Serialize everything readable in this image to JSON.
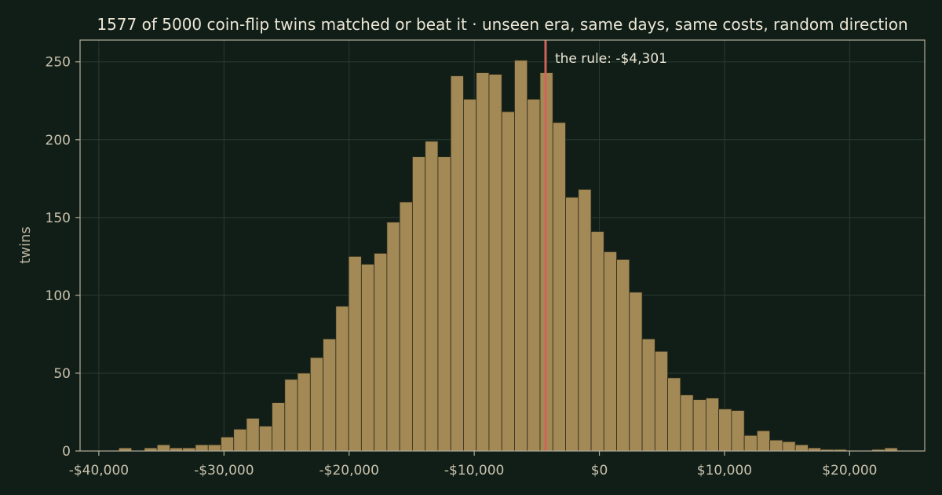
{
  "chart_data": {
    "type": "bar",
    "title": "1577 of 5000 coin-flip twins matched or beat it  ·  unseen era, same days, same costs, random direction",
    "xlabel": "",
    "ylabel": "twins",
    "xlim": [
      -41500,
      26000
    ],
    "ylim": [
      0,
      264
    ],
    "x_ticks": [
      -40000,
      -30000,
      -20000,
      -10000,
      0,
      10000,
      20000
    ],
    "x_tick_labels": [
      "-$40,000",
      "-$30,000",
      "-$20,000",
      "-$10,000",
      "$0",
      "$10,000",
      "$20,000"
    ],
    "y_ticks": [
      0,
      50,
      100,
      150,
      200,
      250
    ],
    "y_tick_labels": [
      "0",
      "50",
      "100",
      "150",
      "200",
      "250"
    ],
    "grid": true,
    "bin_start": -38400,
    "bin_width": 1020,
    "values": [
      2,
      0,
      2,
      4,
      2,
      2,
      4,
      4,
      9,
      14,
      21,
      16,
      31,
      46,
      50,
      60,
      72,
      93,
      125,
      120,
      127,
      147,
      160,
      189,
      199,
      189,
      241,
      226,
      243,
      242,
      218,
      251,
      226,
      243,
      211,
      163,
      168,
      141,
      128,
      123,
      102,
      72,
      64,
      47,
      36,
      33,
      34,
      27,
      26,
      10,
      13,
      7,
      6,
      4,
      2,
      1,
      1,
      0,
      0,
      1,
      2
    ],
    "marker": {
      "value": -4301,
      "label": "the rule: -$4,301",
      "color": "#d0645a"
    },
    "bar_color": "#a38955",
    "bar_edge_color": "#2b2a1c",
    "background": "#101e17",
    "grid_color": "#2a3a31",
    "axis_color": "#b4ad9a"
  }
}
